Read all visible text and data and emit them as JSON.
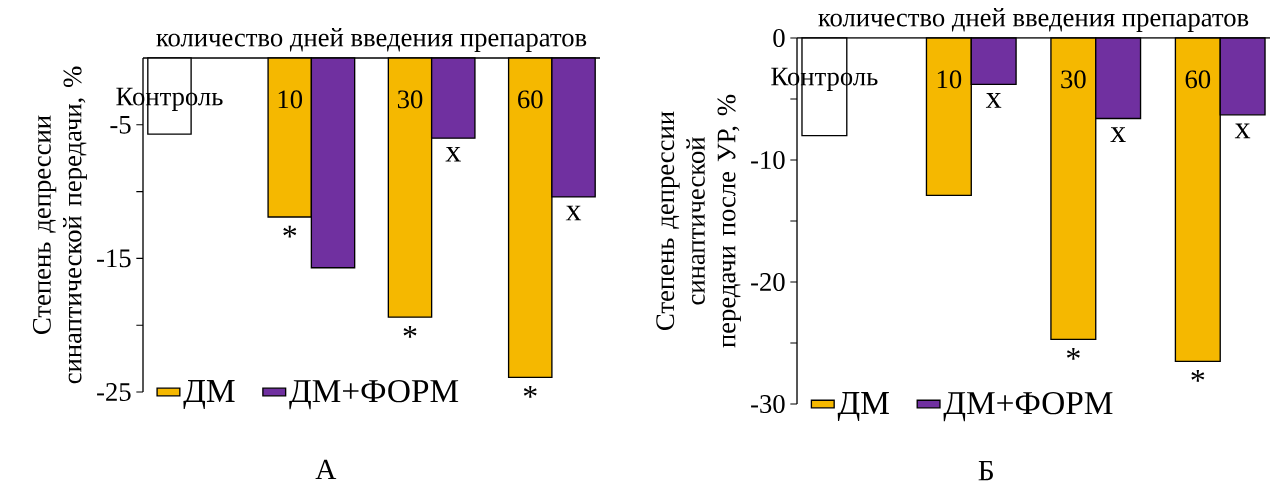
{
  "chart_data": [
    {
      "type": "bar",
      "xlabel": "количество дней введения препаратов",
      "ylabel": "Степень депрессии синаптической передачи, %",
      "categories": [
        "Контроль",
        "10",
        "30",
        "60"
      ],
      "series": [
        {
          "name": "ДМ",
          "color": "#f5b800",
          "colors": [
            "#ffffff",
            "#f5b800",
            "#f5b800",
            "#f5b800"
          ],
          "values": [
            -5.7,
            -11.9,
            -19.4,
            -23.9
          ],
          "value_labels": [
            null,
            "*",
            "*",
            "*"
          ]
        },
        {
          "name": "ДМ+ФОРМ",
          "color": "#7030a0",
          "values": [
            null,
            -15.7,
            -6.0,
            -10.4
          ],
          "value_labels": [
            null,
            null,
            "x",
            "x"
          ]
        }
      ],
      "ylim": [
        -25,
        0
      ],
      "yticks": [
        -5,
        {
          "value": -10,
          "label": null
        },
        -15,
        {
          "value": -20,
          "label": null
        },
        -25
      ],
      "legend": "bottom left",
      "annotations": [
        "А"
      ]
    },
    {
      "type": "bar",
      "xlabel": "количество дней введения препаратов",
      "ylabel": "Степень депрессии синаптической передачи после УР, %",
      "categories": [
        "Контроль",
        "10",
        "30",
        "60"
      ],
      "series": [
        {
          "name": "ДМ",
          "color": "#f5b800",
          "colors": [
            "#ffffff",
            "#f5b800",
            "#f5b800",
            "#f5b800"
          ],
          "values": [
            -8.0,
            -12.9,
            -24.7,
            -26.5
          ],
          "value_labels": [
            null,
            null,
            "*",
            "*"
          ]
        },
        {
          "name": "ДМ+ФОРМ",
          "color": "#7030a0",
          "values": [
            null,
            -3.8,
            -6.6,
            -6.3
          ],
          "value_labels": [
            null,
            "x",
            "x",
            "x"
          ]
        }
      ],
      "ylim": [
        -30,
        0
      ],
      "yticks": [
        0,
        {
          "value": -5,
          "label": null
        },
        -10,
        {
          "value": -15,
          "label": null
        },
        -20,
        {
          "value": -25,
          "label": null
        },
        -30
      ],
      "legend": "bottom left",
      "annotations": [
        "Б"
      ]
    }
  ]
}
